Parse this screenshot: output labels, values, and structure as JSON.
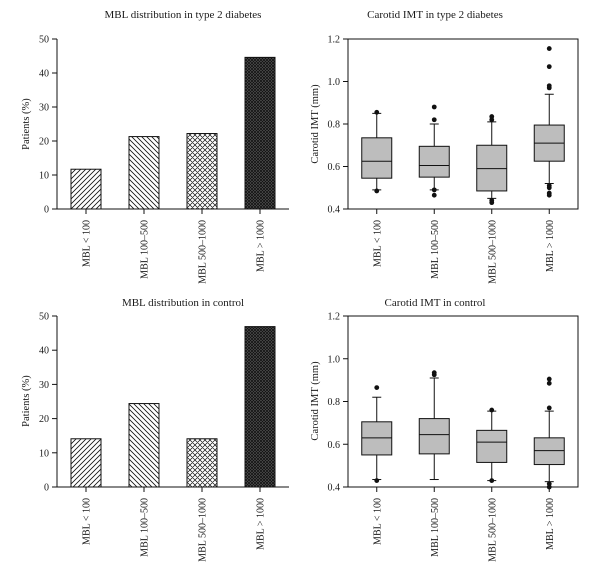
{
  "chart_data": [
    {
      "type": "bar",
      "title": "MBL distribution in type 2 diabetes",
      "ylabel": "Patients (%)",
      "xlabel": "",
      "ylim": [
        0,
        50
      ],
      "yticks": [
        0,
        10,
        20,
        30,
        40,
        50
      ],
      "categories": [
        "MBL < 100",
        "MBL 100–500",
        "MBL 500–1000",
        "MBL > 1000"
      ],
      "values": [
        11.7,
        21.3,
        22.2,
        44.6
      ],
      "bar_patterns": [
        "diagonal-forward",
        "diagonal-backward",
        "crosshatch",
        "dense-crosshatch"
      ]
    },
    {
      "type": "box",
      "title": "Carotid IMT in type 2 diabetes",
      "ylabel": "Carotid IMT (mm)",
      "xlabel": "",
      "ylim": [
        0.4,
        1.2
      ],
      "yticks": [
        "0.4",
        "0.6",
        "0.8",
        "1.0",
        "1.2"
      ],
      "categories": [
        "MBL < 100",
        "MBL 100–500",
        "MBL 500–1000",
        "MBL > 1000"
      ],
      "boxes": [
        {
          "q1": 0.545,
          "median": 0.625,
          "q3": 0.735,
          "whisker_low": 0.49,
          "whisker_high": 0.85,
          "outliers": [
            0.485,
            0.855
          ]
        },
        {
          "q1": 0.55,
          "median": 0.605,
          "q3": 0.695,
          "whisker_low": 0.49,
          "whisker_high": 0.8,
          "outliers": [
            0.465,
            0.49,
            0.82,
            0.88
          ]
        },
        {
          "q1": 0.485,
          "median": 0.59,
          "q3": 0.7,
          "whisker_low": 0.45,
          "whisker_high": 0.81,
          "outliers": [
            0.43,
            0.44,
            0.82,
            0.835
          ]
        },
        {
          "q1": 0.625,
          "median": 0.71,
          "q3": 0.795,
          "whisker_low": 0.52,
          "whisker_high": 0.94,
          "outliers": [
            0.465,
            0.475,
            0.5,
            0.51,
            0.97,
            0.98,
            1.07,
            1.155
          ]
        }
      ],
      "box_color": "#bdbdbd"
    },
    {
      "type": "bar",
      "title": "MBL distribution in control",
      "ylabel": "Patients (%)",
      "xlabel": "",
      "ylim": [
        0,
        50
      ],
      "yticks": [
        0,
        10,
        20,
        30,
        40,
        50
      ],
      "categories": [
        "MBL < 100",
        "MBL 100–500",
        "MBL 500–1000",
        "MBL > 1000"
      ],
      "values": [
        14.1,
        24.4,
        14.1,
        46.9
      ],
      "bar_patterns": [
        "diagonal-forward",
        "diagonal-backward",
        "crosshatch",
        "dense-crosshatch"
      ]
    },
    {
      "type": "box",
      "title": "Carotid IMT in control",
      "ylabel": "Carotid IMT (mm)",
      "xlabel": "",
      "ylim": [
        0.4,
        1.2
      ],
      "yticks": [
        "0.4",
        "0.6",
        "0.8",
        "1.0",
        "1.2"
      ],
      "categories": [
        "MBL < 100",
        "MBL 100–500",
        "MBL 500–1000",
        "MBL > 1000"
      ],
      "boxes": [
        {
          "q1": 0.55,
          "median": 0.63,
          "q3": 0.705,
          "whisker_low": 0.435,
          "whisker_high": 0.82,
          "outliers": [
            0.43,
            0.865
          ]
        },
        {
          "q1": 0.555,
          "median": 0.645,
          "q3": 0.72,
          "whisker_low": 0.435,
          "whisker_high": 0.91,
          "outliers": [
            0.925,
            0.935
          ]
        },
        {
          "q1": 0.515,
          "median": 0.61,
          "q3": 0.665,
          "whisker_low": 0.43,
          "whisker_high": 0.755,
          "outliers": [
            0.43,
            0.76
          ]
        },
        {
          "q1": 0.505,
          "median": 0.57,
          "q3": 0.63,
          "whisker_low": 0.425,
          "whisker_high": 0.755,
          "outliers": [
            0.4,
            0.415,
            0.77,
            0.885,
            0.905
          ]
        }
      ],
      "box_color": "#bdbdbd"
    }
  ]
}
